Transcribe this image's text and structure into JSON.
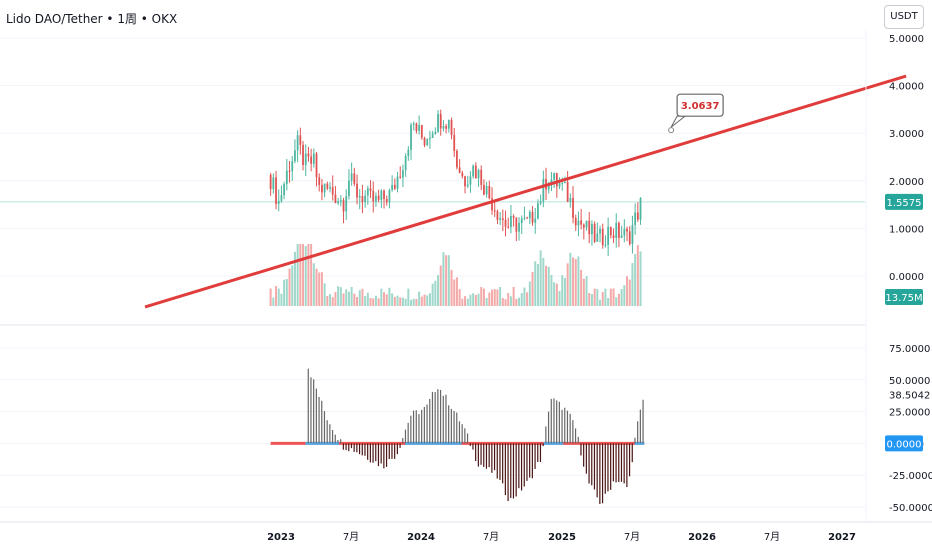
{
  "header": {
    "symbol_title": "Lido DAO/Tether • 1周 • OKX",
    "currency_button": "USDT"
  },
  "colors": {
    "up": "#4db6a0",
    "down": "#e05252",
    "volume_up": "#9fd8cb",
    "volume_down": "#f4a9a9",
    "trendline": "#e03c3c",
    "price_badge": "#26a69a",
    "osc_bar": "#4a1414",
    "osc_bar_pos": "#666666",
    "zero_line_red": "#ee5555",
    "zero_line_blue": "#55b0f0",
    "zero_badge": "#2196f3"
  },
  "chart_data": [
    {
      "type": "candlestick",
      "title": "Lido DAO/Tether • 1周 • OKX",
      "y_ticks": [
        "5.0000",
        "4.0000",
        "3.0000",
        "2.0000",
        "1.0000",
        "0.0000"
      ],
      "ylim": [
        -0.65,
        5.1
      ],
      "x_ticks": [
        "2023",
        "7月",
        "2024",
        "7月",
        "2025",
        "7月",
        "2026",
        "7月",
        "2027"
      ],
      "current_price_label": "1.5575",
      "current_price": 1.5575,
      "volume_label": "13.75M",
      "trendline": {
        "label": "3.0637",
        "start": {
          "date": "2022-01-12",
          "price": -0.65
        },
        "end": {
          "date": "2027-06-17",
          "price": 4.2
        },
        "marker": {
          "date": "2025-10-13",
          "price": 3.0637
        }
      },
      "close_series": [
        [
          "2022-12-05",
          2.05
        ],
        [
          "2022-12-26",
          1.55
        ],
        [
          "2023-01-23",
          2.35
        ],
        [
          "2023-02-13",
          2.75
        ],
        [
          "2023-03-06",
          2.35
        ],
        [
          "2023-03-27",
          2.4
        ],
        [
          "2023-04-10",
          1.85
        ],
        [
          "2023-05-08",
          1.8
        ],
        [
          "2023-06-12",
          1.55
        ],
        [
          "2023-06-26",
          2.05
        ],
        [
          "2023-07-17",
          1.75
        ],
        [
          "2023-08-21",
          1.6
        ],
        [
          "2023-09-11",
          1.55
        ],
        [
          "2023-10-16",
          1.75
        ],
        [
          "2023-11-13",
          2.35
        ],
        [
          "2023-12-11",
          3.2
        ],
        [
          "2024-01-08",
          2.85
        ],
        [
          "2024-02-05",
          3.2
        ],
        [
          "2024-02-26",
          3.35
        ],
        [
          "2024-03-18",
          3.2
        ],
        [
          "2024-04-01",
          2.4
        ],
        [
          "2024-04-22",
          2.0
        ],
        [
          "2024-05-13",
          2.3
        ],
        [
          "2024-06-03",
          2.1
        ],
        [
          "2024-06-24",
          1.7
        ],
        [
          "2024-07-22",
          1.3
        ],
        [
          "2024-08-12",
          1.05
        ],
        [
          "2024-09-09",
          1.1
        ],
        [
          "2024-10-07",
          1.1
        ],
        [
          "2024-11-04",
          1.6
        ],
        [
          "2024-11-25",
          2.1
        ],
        [
          "2024-12-09",
          2.0
        ],
        [
          "2024-12-30",
          1.9
        ],
        [
          "2025-01-20",
          1.65
        ],
        [
          "2025-02-10",
          1.2
        ],
        [
          "2025-03-03",
          1.0
        ],
        [
          "2025-04-07",
          0.75
        ],
        [
          "2025-05-05",
          0.95
        ],
        [
          "2025-06-02",
          0.9
        ],
        [
          "2025-06-23",
          0.8
        ],
        [
          "2025-07-14",
          1.25
        ],
        [
          "2025-07-28",
          1.5575
        ]
      ],
      "volume_peaks": [
        [
          "2023-02-13",
          "high"
        ],
        [
          "2023-03-20",
          "high"
        ],
        [
          "2024-03-04",
          "high"
        ],
        [
          "2024-11-11",
          "high"
        ],
        [
          "2025-02-03",
          "high"
        ],
        [
          "2025-07-21",
          "high"
        ]
      ]
    },
    {
      "type": "histogram",
      "title": "",
      "y_ticks": [
        "75.0000",
        "50.0000",
        "25.0000",
        "0.0000",
        "-25.0000",
        "-50.0000"
      ],
      "ylim": [
        -52,
        80
      ],
      "last_value_label": "38.5042",
      "last_value": 38.5042,
      "zero_label": "0.0000",
      "x_ticks": [
        "2023",
        "7月",
        "2024",
        "7月",
        "2025",
        "7月",
        "2026",
        "7月",
        "2027"
      ],
      "series_points": [
        [
          "2023-03-13",
          60
        ],
        [
          "2023-05-01",
          20
        ],
        [
          "2023-06-12",
          -2
        ],
        [
          "2023-07-10",
          -5
        ],
        [
          "2023-08-21",
          -12
        ],
        [
          "2023-09-25",
          -18
        ],
        [
          "2023-10-30",
          -8
        ],
        [
          "2023-12-04",
          22
        ],
        [
          "2024-01-15",
          28
        ],
        [
          "2024-02-12",
          46
        ],
        [
          "2024-03-18",
          30
        ],
        [
          "2024-04-22",
          12
        ],
        [
          "2024-05-27",
          -15
        ],
        [
          "2024-07-15",
          -25
        ],
        [
          "2024-08-19",
          -45
        ],
        [
          "2024-10-07",
          -30
        ],
        [
          "2024-11-11",
          -10
        ],
        [
          "2024-12-02",
          36
        ],
        [
          "2025-01-06",
          28
        ],
        [
          "2025-02-03",
          16
        ],
        [
          "2025-03-10",
          -30
        ],
        [
          "2025-04-14",
          -48
        ],
        [
          "2025-05-19",
          -28
        ],
        [
          "2025-06-23",
          -35
        ],
        [
          "2025-07-14",
          10
        ],
        [
          "2025-08-04",
          38.5
        ]
      ]
    }
  ]
}
